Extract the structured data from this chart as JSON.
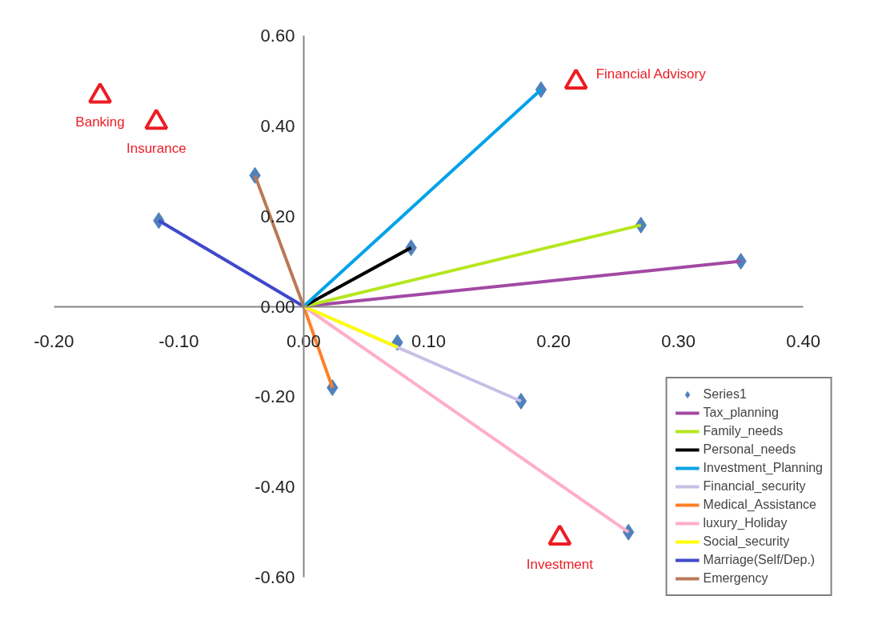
{
  "chart_data": {
    "type": "line",
    "xlim": [
      -0.2,
      0.4
    ],
    "ylim": [
      -0.6,
      0.6
    ],
    "xticks": [
      {
        "value": -0.2,
        "label": "-0.20"
      },
      {
        "value": -0.1,
        "label": "-0.10"
      },
      {
        "value": 0,
        "label": "0.00"
      },
      {
        "value": 0.1,
        "label": "0.10"
      },
      {
        "value": 0.2,
        "label": "0.20"
      },
      {
        "value": 0.3,
        "label": "0.30"
      },
      {
        "value": 0.4,
        "label": "0.40"
      }
    ],
    "yticks": [
      {
        "value": -0.6,
        "label": "-0.60"
      },
      {
        "value": -0.4,
        "label": "-0.40"
      },
      {
        "value": -0.2,
        "label": "-0.20"
      },
      {
        "value": 0,
        "label": "0.00"
      },
      {
        "value": 0.2,
        "label": "0.20"
      },
      {
        "value": 0.4,
        "label": "0.40"
      },
      {
        "value": 0.6,
        "label": "0.60"
      }
    ],
    "grid": false,
    "legend": "bottom right",
    "series": [
      {
        "name": "Tax_planning",
        "color": "#a349a4",
        "x": [
          0,
          0.35
        ],
        "values": [
          0,
          0.1
        ]
      },
      {
        "name": "Family_needs",
        "color": "#b5e61d",
        "x": [
          0,
          0.27
        ],
        "values": [
          0,
          0.18
        ]
      },
      {
        "name": "Personal_needs",
        "color": "#000000",
        "x": [
          0,
          0.086
        ],
        "values": [
          0,
          0.13
        ]
      },
      {
        "name": "Investment_Planning",
        "color": "#00a2e8",
        "x": [
          0,
          0.19
        ],
        "values": [
          0,
          0.48
        ]
      },
      {
        "name": "Financial_security",
        "color": "#c8bfe7",
        "x": [
          0,
          0.174
        ],
        "values": [
          0,
          -0.21
        ]
      },
      {
        "name": "Medical_Assistance",
        "color": "#ff7f27",
        "x": [
          0,
          0.023
        ],
        "values": [
          0,
          -0.18
        ]
      },
      {
        "name": "luxury_Holiday",
        "color": "#ffaec9",
        "x": [
          0,
          0.26
        ],
        "values": [
          0,
          -0.5
        ]
      },
      {
        "name": "Social_security",
        "color": "#ffff00",
        "x": [
          0,
          0.075
        ],
        "values": [
          0,
          -0.09
        ]
      },
      {
        "name": "Marriage(Self/Dep.)",
        "color": "#3f48cc",
        "x": [
          0,
          -0.116
        ],
        "values": [
          0,
          0.19
        ]
      },
      {
        "name": "Emergency",
        "color": "#b97a57",
        "x": [
          0,
          -0.039
        ],
        "values": [
          0,
          0.29
        ]
      },
      {
        "name": "Series1",
        "type": "scatter",
        "marker": "diamond",
        "color": "#4f81bd",
        "x": [
          0.35,
          0.27,
          0.086,
          0.19,
          0.174,
          0.023,
          0.26,
          0.075,
          -0.116,
          -0.039
        ],
        "values": [
          0.1,
          0.18,
          0.13,
          0.48,
          -0.21,
          -0.18,
          -0.5,
          -0.08,
          0.19,
          0.29
        ]
      },
      {
        "type": "scatter",
        "marker": "triangle",
        "color": "#ed1c24",
        "x": [
          -0.163,
          -0.118,
          0.218,
          0.205
        ],
        "values": [
          0.466,
          0.408,
          0.497,
          -0.513
        ]
      }
    ],
    "annotations": [
      {
        "text": "Banking",
        "x": -0.163,
        "y": 0.466
      },
      {
        "text": "Insurance",
        "x": -0.118,
        "y": 0.408
      },
      {
        "text": "Financial Advisory",
        "x": 0.218,
        "y": 0.497
      },
      {
        "text": "Investment",
        "x": 0.205,
        "y": -0.513
      }
    ]
  }
}
